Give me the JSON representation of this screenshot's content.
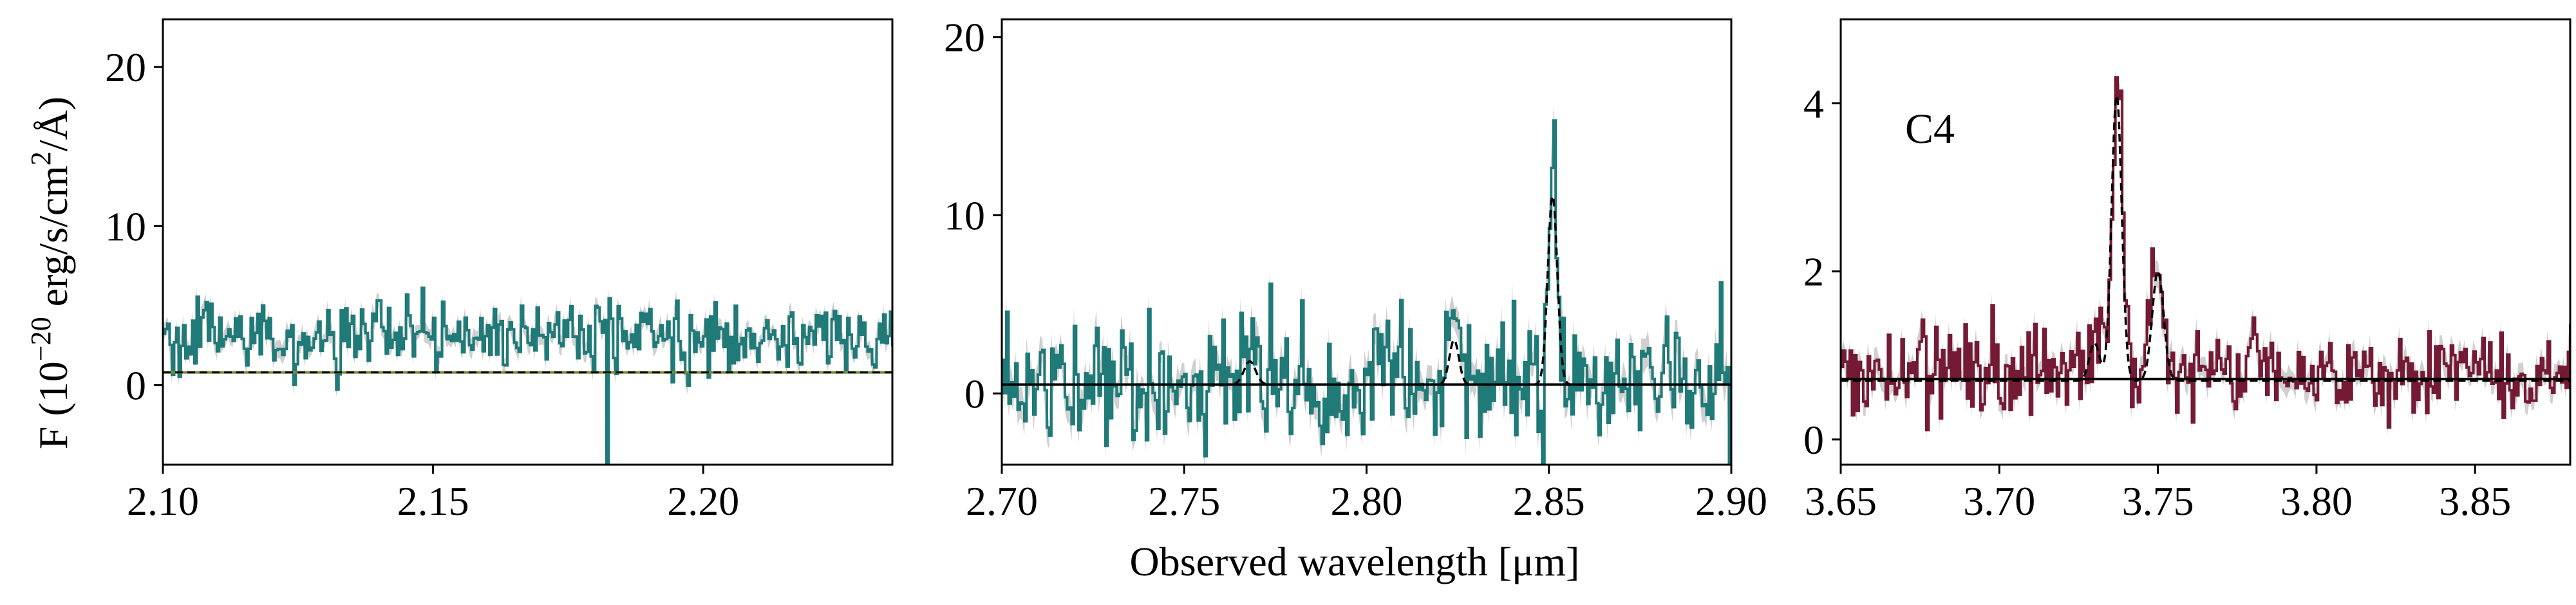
{
  "figure": {
    "ylabel_prefix": "F (10",
    "ylabel_exp": "−20",
    "ylabel_units": " erg/s/cm",
    "ylabel_sq": "2",
    "ylabel_suffix": "/Å)",
    "xlabel": "Observed wavelength [μm]"
  },
  "colors": {
    "teal": "#1f7a78",
    "maroon": "#751a35",
    "error_band": "#c8c8c8",
    "continuum": "#000000",
    "continuum_p1": "#7a8a3a"
  },
  "chart_data": [
    {
      "type": "line",
      "panel": "left",
      "title": "",
      "xlim": [
        2.1,
        2.235
      ],
      "ylim": [
        -5,
        23
      ],
      "xticks": [
        2.1,
        2.15,
        2.2
      ],
      "xtick_labels": [
        "2.10",
        "2.15",
        "2.20"
      ],
      "yticks": [
        0,
        10,
        20
      ],
      "ytick_labels": [
        "0",
        "10",
        "20"
      ],
      "series": [
        {
          "name": "spectrum",
          "style": "step",
          "color": "teal",
          "continuum": 3.0,
          "noise": 1.1,
          "lines": [],
          "dips": [
            {
              "x": 2.182,
              "depth": -9
            }
          ]
        },
        {
          "name": "continuum",
          "style": "dashed",
          "value": 0.8
        }
      ]
    },
    {
      "type": "line",
      "panel": "middle",
      "title": "",
      "xlim": [
        2.7,
        2.9
      ],
      "ylim": [
        -4,
        21
      ],
      "xticks": [
        2.7,
        2.75,
        2.8,
        2.85,
        2.9
      ],
      "xtick_labels": [
        "2.70",
        "2.75",
        "2.80",
        "2.85",
        "2.90"
      ],
      "yticks": [
        0,
        10,
        20
      ],
      "ytick_labels": [
        "0",
        "10",
        "20"
      ],
      "series": [
        {
          "name": "spectrum",
          "style": "step",
          "color": "teal",
          "continuum": 0.6,
          "noise": 1.7,
          "lines": [
            {
              "x": 2.768,
              "amp": 1.5,
              "sigma": 0.0016
            },
            {
              "x": 2.824,
              "amp": 4.0,
              "sigma": 0.0012
            },
            {
              "x": 2.851,
              "amp": 14.0,
              "sigma": 0.001
            }
          ]
        },
        {
          "name": "model",
          "style": "dashed",
          "continuum": 0.5,
          "lines": [
            {
              "x": 2.768,
              "amp": 1.3,
              "sigma": 0.0016
            },
            {
              "x": 2.824,
              "amp": 2.5,
              "sigma": 0.0013
            },
            {
              "x": 2.851,
              "amp": 10.6,
              "sigma": 0.0013
            }
          ]
        },
        {
          "name": "continuum",
          "style": "solid",
          "value": 0.5
        }
      ]
    },
    {
      "type": "line",
      "panel": "right",
      "title": "C4",
      "xlim": [
        3.65,
        3.88
      ],
      "ylim": [
        -0.3,
        5.0
      ],
      "xticks": [
        3.65,
        3.7,
        3.75,
        3.8,
        3.85
      ],
      "xtick_labels": [
        "3.65",
        "3.70",
        "3.75",
        "3.80",
        "3.85"
      ],
      "yticks": [
        0,
        2,
        4
      ],
      "ytick_labels": [
        "0",
        "2",
        "4"
      ],
      "series": [
        {
          "name": "spectrum",
          "style": "step",
          "color": "maroon",
          "continuum": 0.8,
          "noise": 0.28,
          "lines": [
            {
              "x": 3.731,
              "amp": 0.6,
              "sigma": 0.0018
            },
            {
              "x": 3.737,
              "amp": 3.6,
              "sigma": 0.0016
            },
            {
              "x": 3.749,
              "amp": 1.3,
              "sigma": 0.0022
            },
            {
              "x": 3.78,
              "amp": 0.6,
              "sigma": 0.0008
            }
          ]
        },
        {
          "name": "model",
          "style": "dashed",
          "continuum": 0.7,
          "lines": [
            {
              "x": 3.73,
              "amp": 0.45,
              "sigma": 0.0016
            },
            {
              "x": 3.737,
              "amp": 3.4,
              "sigma": 0.0016
            },
            {
              "x": 3.75,
              "amp": 1.3,
              "sigma": 0.0018
            }
          ]
        },
        {
          "name": "continuum",
          "style": "solid",
          "value": 0.72
        }
      ]
    }
  ]
}
